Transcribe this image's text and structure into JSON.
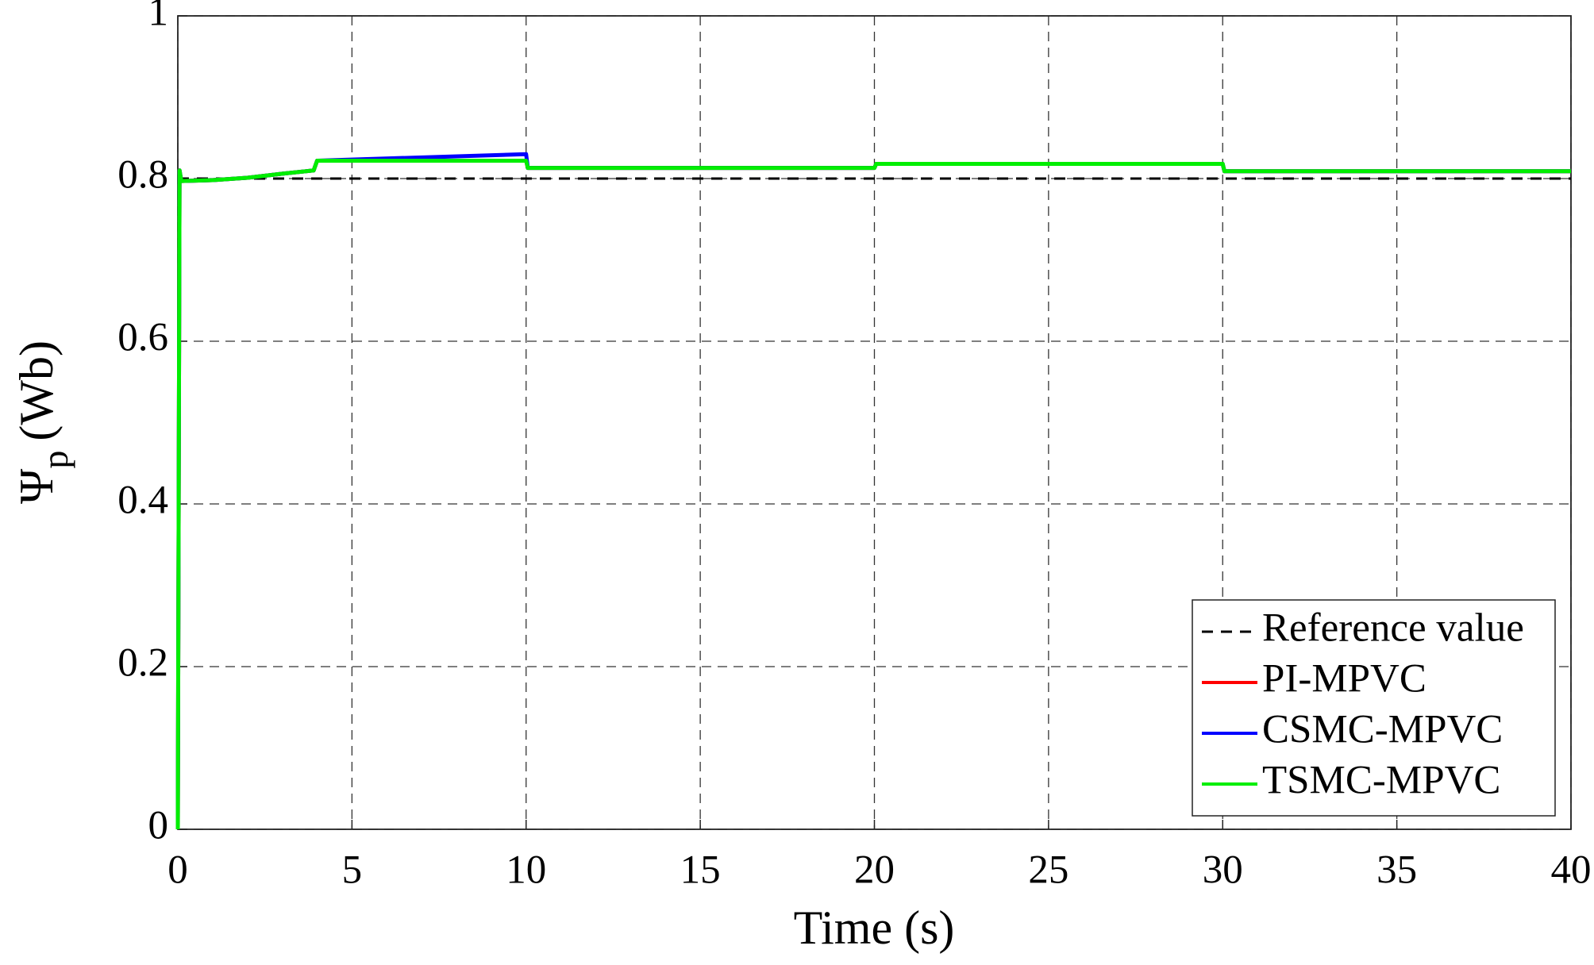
{
  "chart_data": {
    "type": "line",
    "xlabel": "Time (s)",
    "ylabel": {
      "symbol": "Ψ",
      "subscript": "p",
      "unit": "(Wb)"
    },
    "x": [
      0,
      0.05,
      0.1,
      1,
      2,
      3,
      3.9,
      4,
      10,
      10.05,
      20,
      20.05,
      30,
      30.05,
      40
    ],
    "series": [
      {
        "name": "Reference value",
        "color": "#000000",
        "dash": true,
        "values": [
          0.8,
          0.8,
          0.8,
          0.8,
          0.8,
          0.8,
          0.8,
          0.8,
          0.8,
          0.8,
          0.8,
          0.8,
          0.8,
          0.8,
          0.8
        ]
      },
      {
        "name": "PI-MPVC",
        "color": "#ff0000",
        "values": [
          0,
          0.81,
          0.797,
          0.798,
          0.801,
          0.806,
          0.81,
          0.822,
          0.822,
          0.813,
          0.813,
          0.818,
          0.818,
          0.809,
          0.809
        ]
      },
      {
        "name": "CSMC-MPVC",
        "color": "#0000ff",
        "values": [
          0,
          0.81,
          0.797,
          0.798,
          0.801,
          0.806,
          0.81,
          0.822,
          0.83,
          0.813,
          0.813,
          0.818,
          0.818,
          0.809,
          0.809
        ]
      },
      {
        "name": "TSMC-MPVC",
        "color": "#00ee00",
        "values": [
          0,
          0.81,
          0.797,
          0.798,
          0.801,
          0.806,
          0.81,
          0.822,
          0.822,
          0.813,
          0.813,
          0.818,
          0.818,
          0.809,
          0.809
        ]
      }
    ],
    "xlim": [
      0,
      40
    ],
    "xticks": [
      0,
      5,
      10,
      15,
      20,
      25,
      30,
      35,
      40
    ],
    "ylim": [
      0,
      1
    ],
    "yticks": [
      0,
      0.2,
      0.4,
      0.6,
      0.8,
      1
    ],
    "grid": true,
    "legend": "lower right"
  }
}
